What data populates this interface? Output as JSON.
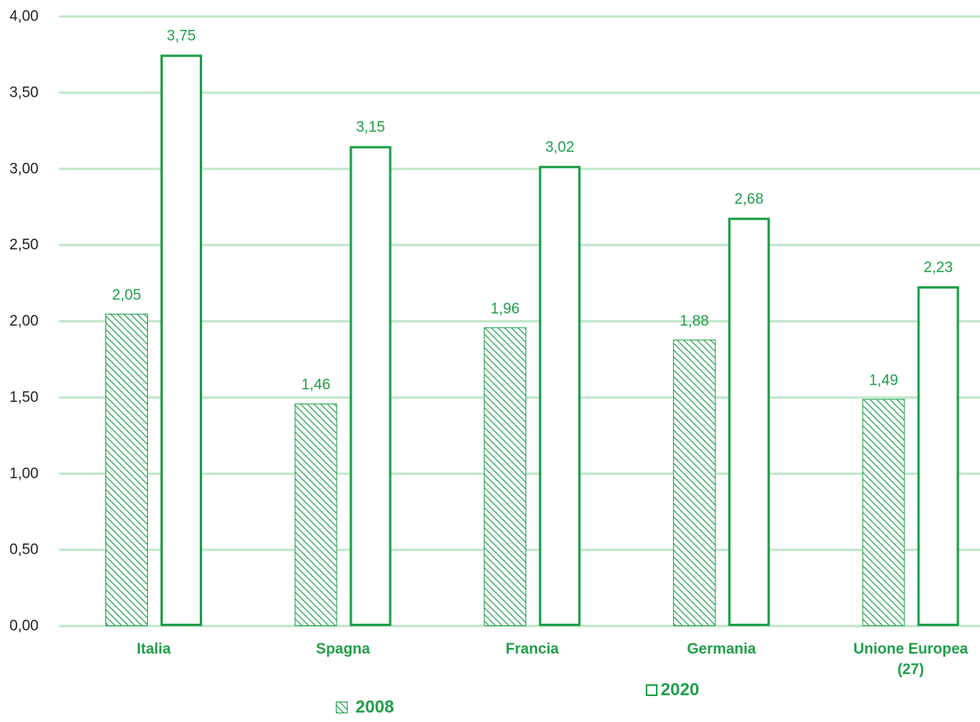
{
  "chart_data": {
    "type": "bar",
    "categories": [
      "Italia",
      "Spagna",
      "Francia",
      "Germania",
      "Unione Europea (27)"
    ],
    "series": [
      {
        "name": "2008",
        "values": [
          2.05,
          1.46,
          1.96,
          1.88,
          1.49
        ],
        "labels": [
          "2,05",
          "1,46",
          "1,96",
          "1,88",
          "1,49"
        ],
        "style": "hatched",
        "color": "#1e9f48"
      },
      {
        "name": "2020",
        "values": [
          3.75,
          3.15,
          3.02,
          2.68,
          2.23
        ],
        "labels": [
          "3,75",
          "3,15",
          "3,02",
          "2,68",
          "2,23"
        ],
        "style": "outline",
        "color": "#1e9f48"
      }
    ],
    "ylim": [
      0,
      4
    ],
    "y_tick_values": [
      0,
      0.5,
      1,
      1.5,
      2,
      2.5,
      3,
      3.5,
      4
    ],
    "y_tick_labels": [
      "0,00",
      "0,50",
      "1,00",
      "1,50",
      "2,00",
      "2,50",
      "3,00",
      "3,50",
      "4,00"
    ],
    "grid": true,
    "legend_position": "bottom",
    "colors": {
      "accent": "#1e9f48",
      "grid": "#c2e7cb",
      "tick_text": "#222222",
      "background": "#ffffff"
    }
  }
}
